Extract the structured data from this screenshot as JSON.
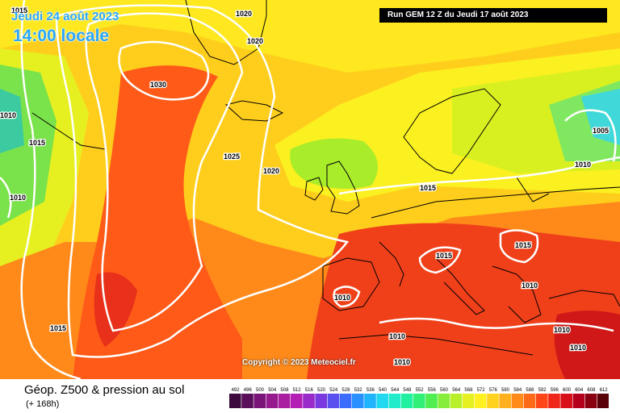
{
  "header": {
    "date_line": "Jeudi 24 août 2023",
    "time_line": "14:00 locale",
    "run_info": "Run GEM 12 Z du Jeudi 17 août 2023"
  },
  "copyright": "Copyright © 2023 Meteociel.fr",
  "footer": {
    "title": "Géop. Z500 & pression au sol",
    "subtitle": "(+ 168h)"
  },
  "pressure_labels": [
    "1015",
    "1020",
    "1020",
    "1010",
    "1015",
    "1030",
    "1025",
    "1020",
    "1010",
    "1015",
    "1015",
    "1015",
    "1005",
    "1010",
    "1015",
    "1010",
    "1010",
    "1010",
    "1010",
    "1010",
    "1010"
  ],
  "colors": {
    "sea_land_outline": "#000000",
    "isobar": "#ffffff",
    "title_text": "#2aa7ff"
  },
  "legend": {
    "ticks": [
      "492",
      "496",
      "500",
      "504",
      "508",
      "512",
      "516",
      "520",
      "524",
      "528",
      "532",
      "536",
      "540",
      "544",
      "548",
      "552",
      "556",
      "560",
      "564",
      "568",
      "572",
      "576",
      "580",
      "584",
      "588",
      "592",
      "596",
      "600",
      "604",
      "608",
      "612"
    ],
    "colors": [
      "#3c0a3c",
      "#5a0f5a",
      "#7a1478",
      "#96198e",
      "#aa1ea0",
      "#b41eb4",
      "#9a2aca",
      "#7a3ae0",
      "#5a50f0",
      "#3a6cff",
      "#2a90ff",
      "#20b4ff",
      "#20d8f0",
      "#20eccc",
      "#20f0a0",
      "#30f078",
      "#50ee50",
      "#86ee3a",
      "#b8f02a",
      "#e6f020",
      "#fff020",
      "#ffd21e",
      "#ffb01c",
      "#ff8c1a",
      "#ff6a18",
      "#ff4618",
      "#f0261a",
      "#d8101a",
      "#b4001a",
      "#8a0010",
      "#5a0008"
    ]
  }
}
